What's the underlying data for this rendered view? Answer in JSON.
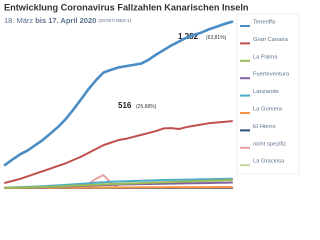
{
  "chart_data": {
    "type": "line",
    "title": "Entwicklung Coronavirus Fallzahlen Kanarischen Inseln",
    "subtitle": [
      "18. März",
      "bis 17. April 2020",
      "(20:00 h MEZ-1)"
    ],
    "annotations": [
      {
        "value": "1.282",
        "share": "(63,81%)"
      },
      {
        "value": "516",
        "share": "(25,68%)"
      }
    ],
    "ylim": [
      0,
      1350
    ],
    "legend": "right",
    "series": [
      {
        "name": "Teneriffa",
        "color": "#4a8cc4",
        "values": [
          178,
          220,
          260,
          290,
          330,
          371,
          420,
          470,
          530,
          602,
          680,
          760,
          830,
          890,
          911,
          930,
          940,
          950,
          960,
          990,
          1030,
          1065,
          1100,
          1130,
          1160,
          1181,
          1200,
          1225,
          1245,
          1265,
          1282
        ]
      },
      {
        "name": "Gran Canaria",
        "color": "#c0504d",
        "values": [
          40,
          55,
          70,
          90,
          110,
          130,
          150,
          170,
          190,
          215,
          240,
          270,
          300,
          330,
          350,
          370,
          380,
          395,
          410,
          425,
          440,
          460,
          462,
          455,
          470,
          480,
          490,
          500,
          505,
          510,
          516
        ]
      },
      {
        "name": "La Palma",
        "color": "#9bbb59",
        "values": [
          2,
          3,
          4,
          5,
          6,
          8,
          10,
          12,
          15,
          18,
          20,
          22,
          25,
          28,
          30,
          32,
          34,
          36,
          38,
          40,
          42,
          44,
          46,
          48,
          50,
          52,
          54,
          56,
          58,
          60,
          62
        ]
      },
      {
        "name": "Fuerteventura",
        "color": "#8064a2",
        "values": [
          1,
          2,
          3,
          4,
          5,
          6,
          8,
          10,
          12,
          14,
          16,
          18,
          20,
          22,
          24,
          26,
          28,
          29,
          30,
          31,
          32,
          33,
          34,
          35,
          36,
          37,
          38,
          39,
          40,
          41,
          42
        ]
      },
      {
        "name": "Lanzarote",
        "color": "#4bacc6",
        "values": [
          3,
          5,
          7,
          9,
          11,
          14,
          17,
          20,
          24,
          28,
          32,
          36,
          40,
          44,
          48,
          50,
          52,
          54,
          56,
          58,
          60,
          62,
          63,
          64,
          65,
          66,
          67,
          68,
          69,
          70,
          71
        ]
      },
      {
        "name": "La Gomera",
        "color": "#f79646",
        "values": [
          0,
          0,
          1,
          1,
          1,
          2,
          2,
          2,
          3,
          3,
          3,
          4,
          4,
          4,
          5,
          5,
          5,
          5,
          6,
          6,
          6,
          6,
          7,
          7,
          7,
          7,
          7,
          7,
          8,
          8,
          8
        ]
      },
      {
        "name": "El Hierro",
        "color": "#2c4d75",
        "values": [
          0,
          0,
          0,
          0,
          0,
          0,
          1,
          1,
          1,
          1,
          1,
          1,
          2,
          2,
          2,
          2,
          2,
          2,
          2,
          2,
          2,
          2,
          2,
          3,
          3,
          3,
          3,
          3,
          3,
          3,
          3
        ]
      },
      {
        "name": "nicht spezifiz",
        "color": "#e8a0a0",
        "values": [
          0,
          0,
          0,
          0,
          0,
          0,
          0,
          0,
          0,
          0,
          0,
          30,
          70,
          100,
          40,
          0,
          0,
          0,
          0,
          0,
          0,
          0,
          0,
          0,
          0,
          0,
          0,
          0,
          0,
          0,
          0
        ]
      },
      {
        "name": "La Graciosa",
        "color": "#c3d69b",
        "values": [
          0,
          0,
          0,
          0,
          0,
          0,
          0,
          0,
          0,
          0,
          0,
          0,
          0,
          0,
          0,
          0,
          0,
          0,
          0,
          0,
          0,
          0,
          0,
          0,
          0,
          0,
          0,
          0,
          0,
          0,
          0
        ]
      }
    ]
  }
}
